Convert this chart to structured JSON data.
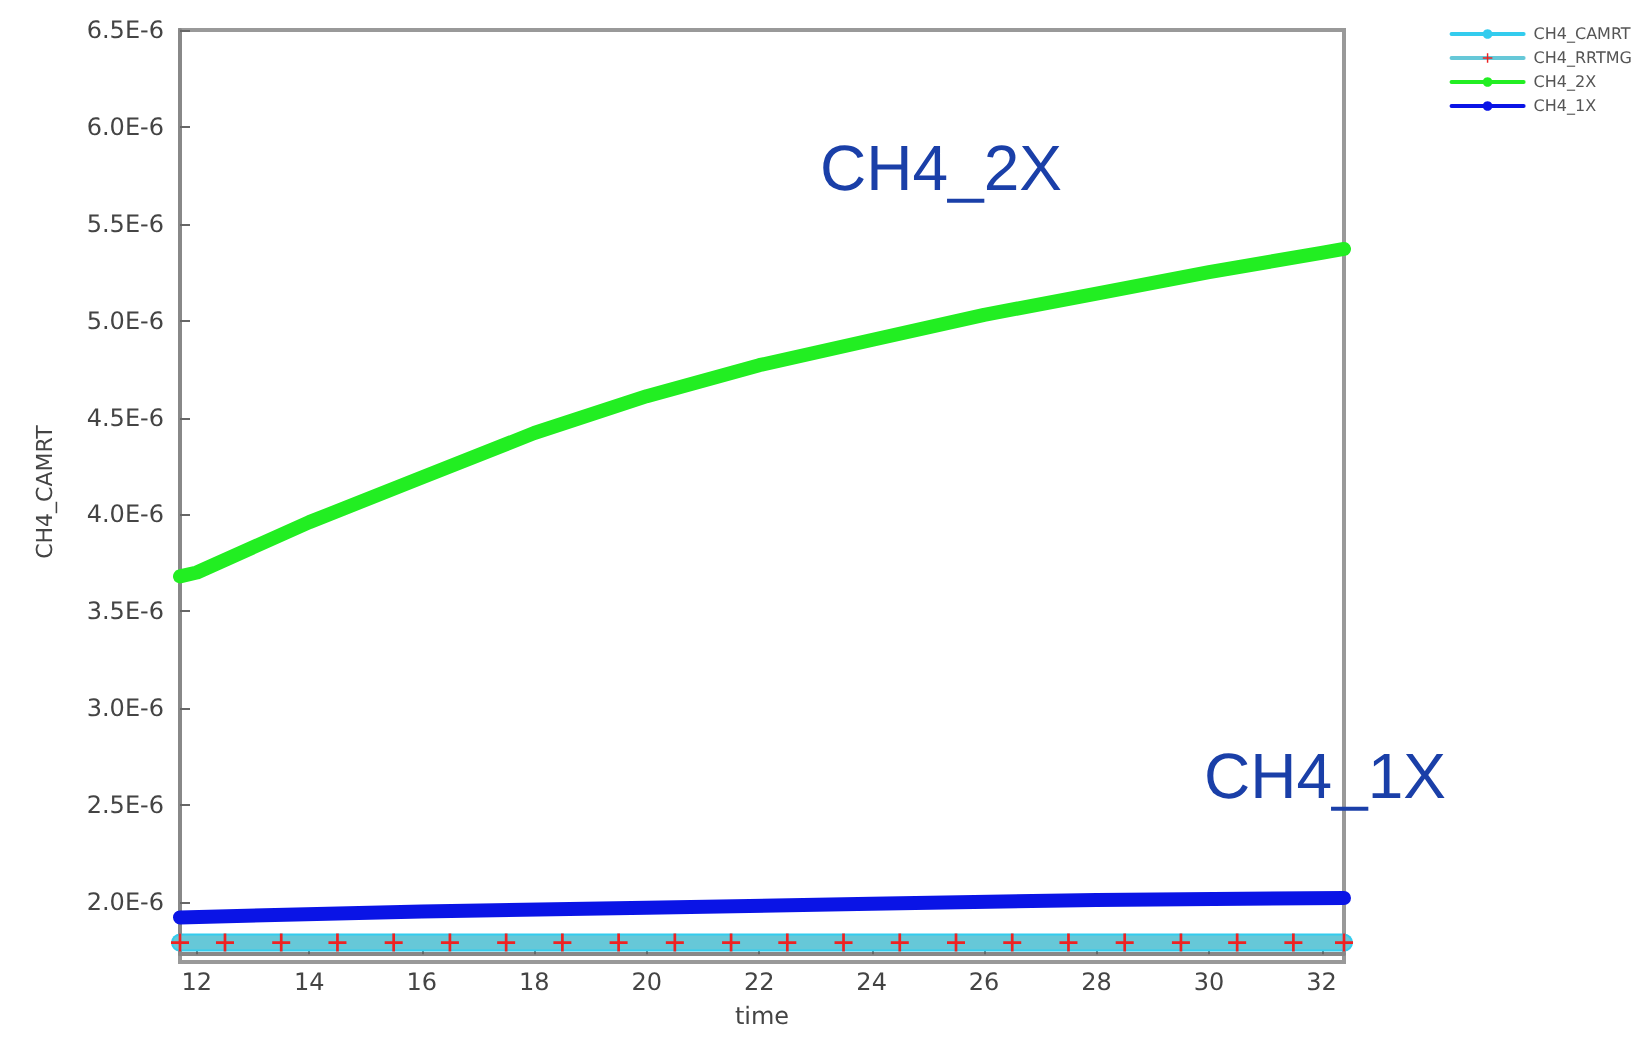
{
  "chart_data": {
    "type": "line",
    "xlabel": "time",
    "ylabel": "CH4_CAMRT",
    "xlim": [
      11.7,
      32.4
    ],
    "xticks": [
      12,
      14,
      16,
      18,
      20,
      22,
      24,
      26,
      28,
      30,
      32
    ],
    "ylim": [
      1.73e-06,
      6.5e-06
    ],
    "yticks": [
      {
        "value": 2e-06,
        "label": "2.0E-6"
      },
      {
        "value": 2.5e-06,
        "label": "2.5E-6"
      },
      {
        "value": 3e-06,
        "label": "3.0E-6"
      },
      {
        "value": 3.5e-06,
        "label": "3.5E-6"
      },
      {
        "value": 4e-06,
        "label": "4.0E-6"
      },
      {
        "value": 4.5e-06,
        "label": "4.5E-6"
      },
      {
        "value": 5e-06,
        "label": "5.0E-6"
      },
      {
        "value": 5.5e-06,
        "label": "5.5E-6"
      },
      {
        "value": 6e-06,
        "label": "6.0E-6"
      },
      {
        "value": 6.5e-06,
        "label": "6.5E-6"
      }
    ],
    "grid": false,
    "legend": "top right",
    "line_style": "solid",
    "series": [
      {
        "name": "CH4_CAMRT",
        "color": "#33ccee",
        "marker": "none",
        "x": [
          11.7,
          32.4
        ],
        "values": [
          1.79e-06,
          1.79e-06
        ]
      },
      {
        "name": "CH4_RRTMG",
        "color": "#66c8d8",
        "marker": "cross",
        "x": [
          11.7,
          12.5,
          13.5,
          14.5,
          15.5,
          16.5,
          17.5,
          18.5,
          19.5,
          20.5,
          21.5,
          22.5,
          23.5,
          24.5,
          25.5,
          26.5,
          27.5,
          28.5,
          29.5,
          30.5,
          31.5,
          32.4
        ],
        "values": [
          1.79e-06,
          1.79e-06,
          1.79e-06,
          1.79e-06,
          1.79e-06,
          1.79e-06,
          1.79e-06,
          1.79e-06,
          1.79e-06,
          1.79e-06,
          1.79e-06,
          1.79e-06,
          1.79e-06,
          1.79e-06,
          1.79e-06,
          1.79e-06,
          1.79e-06,
          1.79e-06,
          1.79e-06,
          1.79e-06,
          1.79e-06,
          1.79e-06
        ]
      },
      {
        "name": "CH4_2X",
        "color": "#22ee22",
        "marker": "none",
        "x": [
          11.7,
          12,
          14,
          16,
          18,
          20,
          22,
          24,
          26,
          28,
          30,
          32,
          32.4
        ],
        "values": [
          3.68e-06,
          3.7e-06,
          3.96e-06,
          4.19e-06,
          4.42e-06,
          4.61e-06,
          4.77e-06,
          4.9e-06,
          5.03e-06,
          5.14e-06,
          5.25e-06,
          5.35e-06,
          5.37e-06
        ]
      },
      {
        "name": "CH4_1X",
        "color": "#0a14e6",
        "marker": "none",
        "x": [
          11.7,
          16,
          20,
          24,
          28,
          32.4
        ],
        "values": [
          1.92e-06,
          1.95e-06,
          1.97e-06,
          1.99e-06,
          2.01e-06,
          2.02e-06
        ]
      }
    ],
    "annotations": [
      "CH4_2X",
      "CH4_1X"
    ]
  }
}
